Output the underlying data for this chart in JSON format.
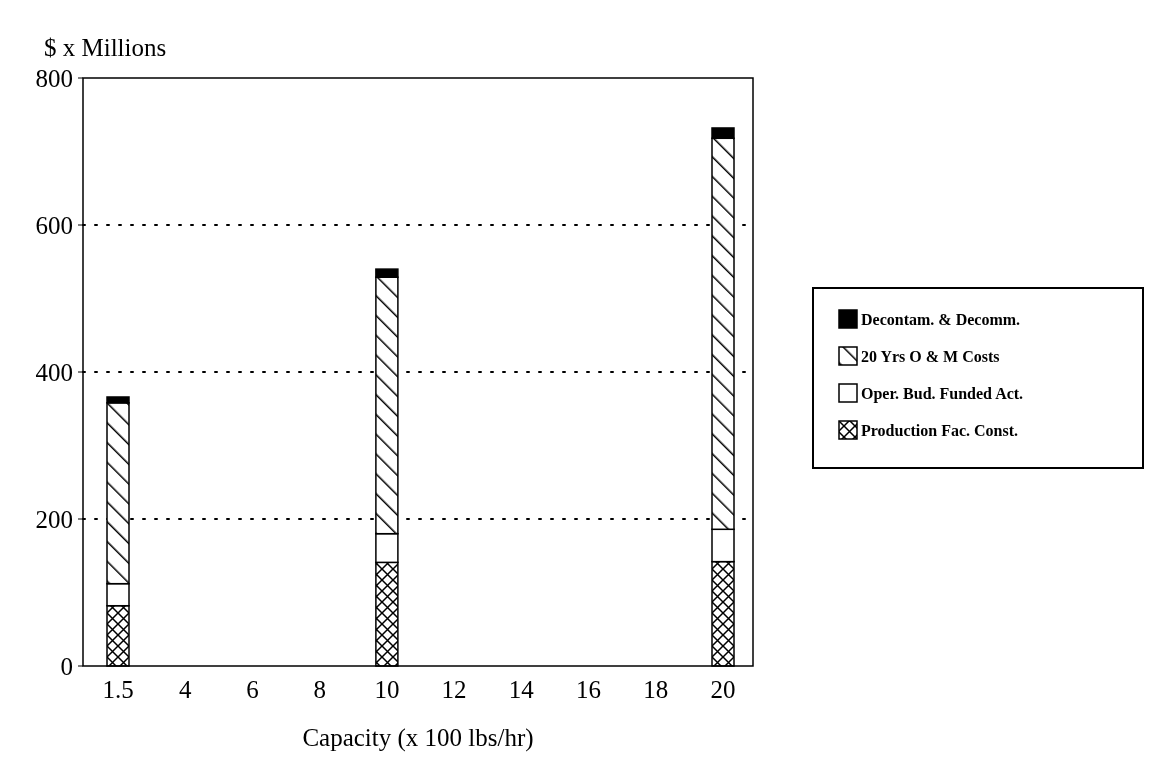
{
  "chart_data": {
    "type": "bar",
    "stacked": true,
    "ylabel": "$ x Millions",
    "xlabel": "Capacity (x 100 lbs/hr)",
    "categories": [
      "1.5",
      "4",
      "6",
      "8",
      "10",
      "12",
      "14",
      "16",
      "18",
      "20"
    ],
    "series": [
      {
        "name": "Production Fac. Const.",
        "color": "#000000",
        "values": [
          82,
          null,
          null,
          null,
          141,
          null,
          null,
          null,
          null,
          142
        ]
      },
      {
        "name": "Oper. Bud. Funded Act.",
        "color": "#ffffff",
        "values": [
          30,
          null,
          null,
          null,
          39,
          null,
          null,
          null,
          null,
          44
        ]
      },
      {
        "name": "20 Yrs O & M Costs",
        "color": "#000000",
        "values": [
          246,
          null,
          null,
          null,
          349,
          null,
          null,
          null,
          null,
          532
        ]
      },
      {
        "name": "Decontam. & Decomm.",
        "color": "#000000",
        "values": [
          8,
          null,
          null,
          null,
          11,
          null,
          null,
          null,
          null,
          14
        ]
      }
    ],
    "ylim": [
      0,
      800
    ],
    "yticks": [
      0,
      200,
      400,
      600,
      800
    ],
    "grid": "y",
    "legend": "right"
  }
}
